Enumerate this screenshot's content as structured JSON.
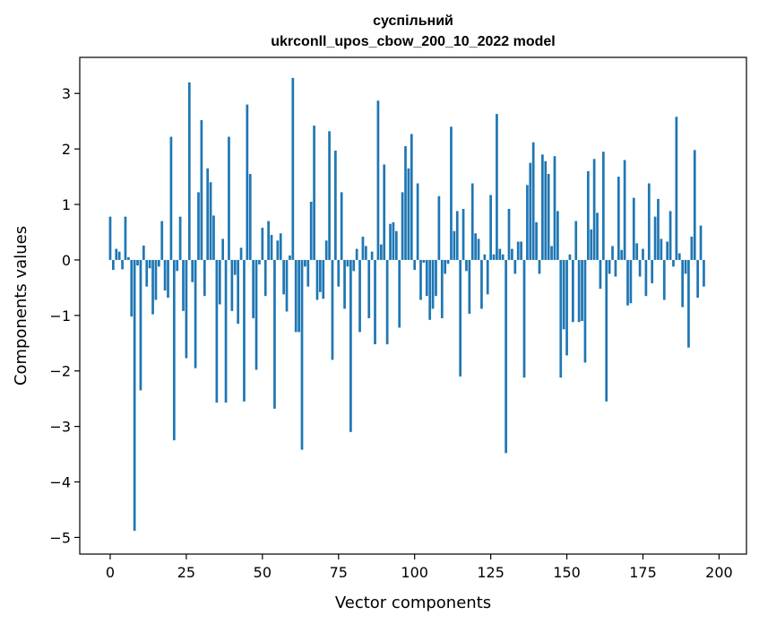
{
  "chart_data": {
    "type": "bar",
    "title": [
      "суспільний",
      "ukrconll_upos_cbow_200_10_2022 model"
    ],
    "xlabel": "Vector components",
    "ylabel": "Components values",
    "xlim": [
      -10,
      209
    ],
    "ylim": [
      -5.3,
      3.65
    ],
    "xticks": [
      0,
      25,
      50,
      75,
      100,
      125,
      150,
      175,
      200
    ],
    "yticks": [
      -5,
      -4,
      -3,
      -2,
      -1,
      0,
      1,
      2,
      3
    ],
    "grid": false,
    "bar_color": "#1f77b4",
    "values": [
      0.78,
      -0.18,
      0.2,
      0.15,
      -0.17,
      0.78,
      0.05,
      -1.02,
      -4.88,
      -0.1,
      -2.35,
      0.26,
      -0.48,
      -0.15,
      -0.98,
      -0.72,
      -0.12,
      0.7,
      -0.55,
      -0.68,
      2.22,
      -3.25,
      -0.2,
      0.78,
      -0.92,
      -1.77,
      3.2,
      -0.4,
      -1.95,
      1.22,
      2.52,
      -0.65,
      1.65,
      1.4,
      0.8,
      -2.57,
      -0.8,
      0.38,
      -2.57,
      2.22,
      -0.92,
      -0.27,
      -1.15,
      0.22,
      -2.55,
      2.8,
      1.55,
      -1.05,
      -1.98,
      -0.08,
      0.58,
      -0.65,
      0.7,
      0.45,
      -2.68,
      0.35,
      0.48,
      -0.62,
      -0.93,
      0.08,
      3.28,
      -1.3,
      -1.3,
      -3.42,
      -0.12,
      -0.48,
      1.05,
      2.42,
      -0.72,
      -0.58,
      -0.7,
      0.35,
      2.32,
      -1.8,
      1.97,
      -0.48,
      1.22,
      -0.88,
      -0.12,
      -3.1,
      -0.2,
      0.2,
      -1.3,
      0.42,
      0.25,
      -1.05,
      0.15,
      -1.52,
      2.87,
      0.28,
      1.72,
      -1.52,
      0.65,
      0.68,
      0.52,
      -1.22,
      1.22,
      2.05,
      1.65,
      2.27,
      -0.18,
      1.38,
      -0.72,
      -0.05,
      -0.65,
      -1.08,
      -0.88,
      -0.65,
      1.15,
      -1.05,
      -0.25,
      -0.07,
      2.4,
      0.52,
      0.88,
      -2.1,
      0.92,
      -0.2,
      -0.97,
      1.38,
      0.48,
      0.38,
      -0.88,
      0.1,
      -0.62,
      1.17,
      0.1,
      2.63,
      0.2,
      0.1,
      -3.48,
      0.92,
      0.2,
      -0.25,
      0.33,
      0.33,
      -2.12,
      1.35,
      1.75,
      2.12,
      0.68,
      -0.25,
      1.9,
      1.78,
      1.55,
      0.25,
      1.87,
      0.88,
      -2.12,
      -1.25,
      -1.72,
      0.1,
      -1.12,
      0.7,
      -1.12,
      -1.1,
      -1.85,
      1.6,
      0.55,
      1.82,
      0.85,
      -0.52,
      1.95,
      -2.55,
      -0.25,
      0.25,
      -0.3,
      1.5,
      0.18,
      1.8,
      -0.82,
      -0.78,
      1.12,
      0.3,
      -0.3,
      0.2,
      -0.65,
      1.38,
      -0.42,
      0.78,
      1.1,
      0.38,
      -0.72,
      0.33,
      0.88,
      -0.12,
      2.58,
      0.12,
      -0.85,
      -0.25,
      -1.58,
      0.42,
      1.98,
      -0.68,
      0.62,
      -0.48
    ]
  }
}
